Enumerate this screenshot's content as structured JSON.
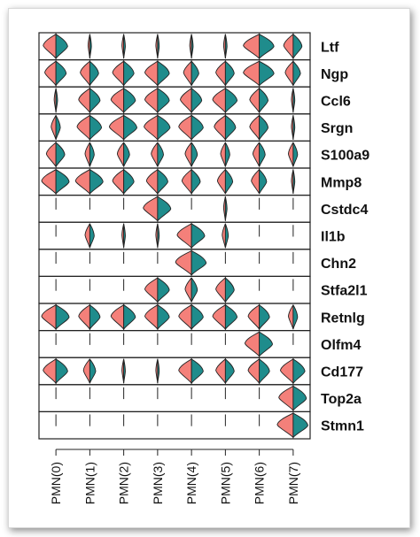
{
  "chart_data": {
    "type": "violin",
    "orientation": "stacked-split",
    "colors": {
      "left": "#f4807a",
      "right": "#1f8c8c"
    },
    "genes": [
      "Ltf",
      "Ngp",
      "Ccl6",
      "Srgn",
      "S100a9",
      "Mmp8",
      "Cstdc4",
      "Il1b",
      "Chn2",
      "Stfa2l1",
      "Retnlg",
      "Olfm4",
      "Cd177",
      "Top2a",
      "Stmn1"
    ],
    "clusters": [
      "PMN(0)",
      "PMN(1)",
      "PMN(2)",
      "PMN(3)",
      "PMN(4)",
      "PMN(5)",
      "PMN(6)",
      "PMN(7)"
    ],
    "expression": [
      [
        0.8,
        0.1,
        0.05,
        0.05,
        0.05,
        0.05,
        1.0,
        0.6
      ],
      [
        0.7,
        0.6,
        0.7,
        0.8,
        0.5,
        0.6,
        1.0,
        0.5
      ],
      [
        0.05,
        0.7,
        0.8,
        0.8,
        0.7,
        0.8,
        0.6,
        0.1
      ],
      [
        0.3,
        0.8,
        0.9,
        0.85,
        0.8,
        0.7,
        0.6,
        0.1
      ],
      [
        0.6,
        0.3,
        0.4,
        0.4,
        0.4,
        0.3,
        0.4,
        0.3
      ],
      [
        0.9,
        0.9,
        0.7,
        0.7,
        0.6,
        0.5,
        0.5,
        0.05
      ],
      [
        0.0,
        0.0,
        0.0,
        0.9,
        0.0,
        0.1,
        0.0,
        0.0
      ],
      [
        0.0,
        0.3,
        0.05,
        0.1,
        0.9,
        0.2,
        0.0,
        0.0
      ],
      [
        0.0,
        0.0,
        0.0,
        0.0,
        1.0,
        0.0,
        0.0,
        0.0
      ],
      [
        0.0,
        0.0,
        0.0,
        0.8,
        0.4,
        0.6,
        0.0,
        0.0
      ],
      [
        0.9,
        0.7,
        0.8,
        0.8,
        0.8,
        0.8,
        0.7,
        0.3
      ],
      [
        0.0,
        0.0,
        0.0,
        0.0,
        0.0,
        0.0,
        0.9,
        0.0
      ],
      [
        0.8,
        0.4,
        0.1,
        0.05,
        0.8,
        0.6,
        0.7,
        0.8
      ],
      [
        0.0,
        0.0,
        0.0,
        0.0,
        0.0,
        0.0,
        0.0,
        0.9
      ],
      [
        0.0,
        0.0,
        0.0,
        0.0,
        0.0,
        0.0,
        0.0,
        1.0
      ]
    ]
  }
}
